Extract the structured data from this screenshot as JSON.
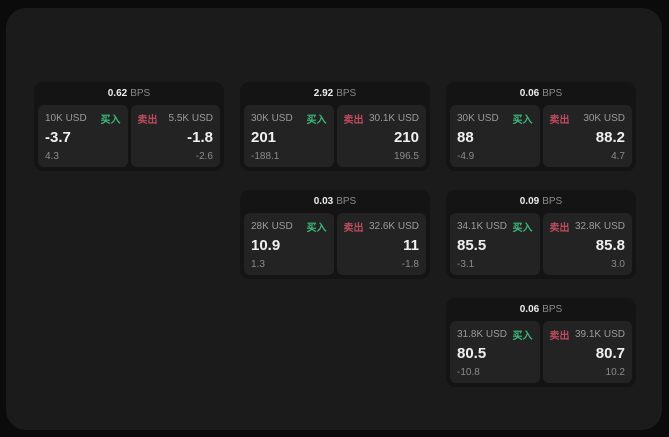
{
  "labels": {
    "buy": "买入",
    "sell": "卖出",
    "bps_unit": "BPS"
  },
  "colors": {
    "page_bg": "#0b0b0b",
    "window_bg": "#1b1b1b",
    "card_bg": "#141414",
    "panel_bg": "#232323",
    "buy_green": "#3cba7c",
    "sell_red": "#bd4b5e"
  },
  "cards": [
    {
      "bps_value": "0.62",
      "grid": {
        "row": 1,
        "col": 1
      },
      "buy": {
        "amount": "10K USD",
        "value": "-3.7",
        "change": "4.3"
      },
      "sell": {
        "amount": "5.5K USD",
        "value": "-1.8",
        "change": "-2.6"
      }
    },
    {
      "bps_value": "2.92",
      "grid": {
        "row": 1,
        "col": 2
      },
      "buy": {
        "amount": "30K USD",
        "value": "201",
        "change": "-188.1"
      },
      "sell": {
        "amount": "30.1K USD",
        "value": "210",
        "change": "196.5"
      }
    },
    {
      "bps_value": "0.06",
      "grid": {
        "row": 1,
        "col": 3
      },
      "buy": {
        "amount": "30K USD",
        "value": "88",
        "change": "-4.9"
      },
      "sell": {
        "amount": "30K USD",
        "value": "88.2",
        "change": "4.7"
      }
    },
    {
      "bps_value": "0.03",
      "grid": {
        "row": 2,
        "col": 2
      },
      "buy": {
        "amount": "28K USD",
        "value": "10.9",
        "change": "1.3"
      },
      "sell": {
        "amount": "32.6K USD",
        "value": "11",
        "change": "-1.8"
      }
    },
    {
      "bps_value": "0.09",
      "grid": {
        "row": 2,
        "col": 3
      },
      "buy": {
        "amount": "34.1K USD",
        "value": "85.5",
        "change": "-3.1"
      },
      "sell": {
        "amount": "32.8K USD",
        "value": "85.8",
        "change": "3.0"
      }
    },
    {
      "bps_value": "0.06",
      "grid": {
        "row": 3,
        "col": 3
      },
      "buy": {
        "amount": "31.8K USD",
        "value": "80.5",
        "change": "-10.8"
      },
      "sell": {
        "amount": "39.1K USD",
        "value": "80.7",
        "change": "10.2"
      }
    }
  ]
}
